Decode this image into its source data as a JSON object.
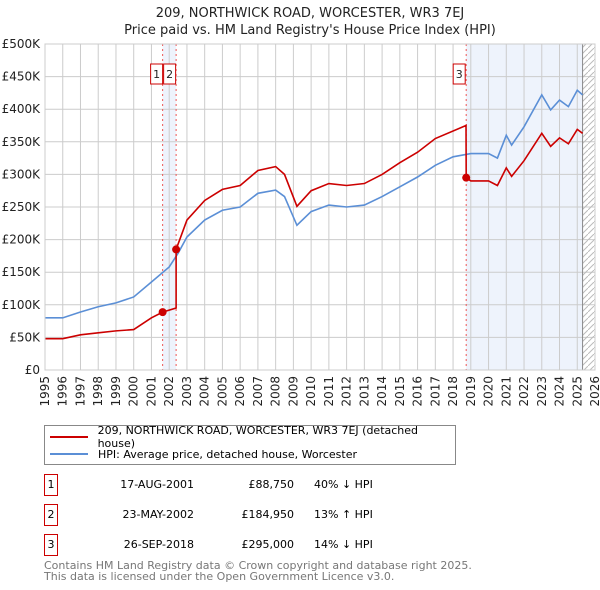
{
  "chart_data": {
    "type": "line",
    "title": "209, NORTHWICK ROAD, WORCESTER, WR3 7EJ",
    "subtitle": "Price paid vs. HM Land Registry's House Price Index (HPI)",
    "xlim": [
      1995,
      2026
    ],
    "ylim": [
      0,
      500000
    ],
    "yticks": [
      {
        "v": 0,
        "label": "£0"
      },
      {
        "v": 50000,
        "label": "£50K"
      },
      {
        "v": 100000,
        "label": "£100K"
      },
      {
        "v": 150000,
        "label": "£150K"
      },
      {
        "v": 200000,
        "label": "£200K"
      },
      {
        "v": 250000,
        "label": "£250K"
      },
      {
        "v": 300000,
        "label": "£300K"
      },
      {
        "v": 350000,
        "label": "£350K"
      },
      {
        "v": 400000,
        "label": "£400K"
      },
      {
        "v": 450000,
        "label": "£450K"
      },
      {
        "v": 500000,
        "label": "£500K"
      }
    ],
    "xticks": [
      "1995",
      "1996",
      "1997",
      "1998",
      "1999",
      "2000",
      "2001",
      "2002",
      "2003",
      "2004",
      "2005",
      "2006",
      "2007",
      "2008",
      "2009",
      "2010",
      "2011",
      "2012",
      "2013",
      "2014",
      "2015",
      "2016",
      "2017",
      "2018",
      "2019",
      "2020",
      "2021",
      "2022",
      "2023",
      "2024",
      "2025",
      "2026"
    ],
    "grid": true,
    "series": [
      {
        "name": "209, NORTHWICK ROAD, WORCESTER, WR3 7EJ (detached house)",
        "color": "#cc0000",
        "x": [
          1995,
          1996,
          1997,
          1998,
          1999,
          2000,
          2001,
          2001.63,
          2002.39,
          2002.39,
          2003,
          2004,
          2005,
          2006,
          2007,
          2008,
          2008.5,
          2009.2,
          2010,
          2011,
          2012,
          2013,
          2014,
          2015,
          2016,
          2017,
          2018.73,
          2018.74,
          2019,
          2020,
          2020.5,
          2021,
          2021.3,
          2022,
          2023,
          2023.5,
          2024,
          2024.5,
          2025,
          2025.3
        ],
        "y": [
          48000,
          48000,
          54000,
          57000,
          60000,
          62000,
          80000,
          88750,
          95000,
          184950,
          230000,
          260000,
          277000,
          283000,
          306000,
          312000,
          300000,
          251000,
          275000,
          286000,
          283000,
          286000,
          300000,
          318000,
          334000,
          355000,
          375000,
          295000,
          290000,
          290000,
          283000,
          310000,
          297000,
          321000,
          363000,
          343000,
          356000,
          347000,
          369000,
          363000
        ]
      },
      {
        "name": "HPI: Average price, detached house, Worcester",
        "color": "#5b8fd6",
        "x": [
          1995,
          1996,
          1997,
          1998,
          1999,
          2000,
          2001,
          2002,
          2002.5,
          2003,
          2004,
          2005,
          2006,
          2007,
          2008,
          2008.5,
          2009.2,
          2010,
          2011,
          2012,
          2013,
          2014,
          2015,
          2016,
          2017,
          2018,
          2019,
          2020,
          2020.5,
          2021,
          2021.3,
          2022,
          2023,
          2023.5,
          2024,
          2024.5,
          2025,
          2025.3
        ],
        "y": [
          80000,
          80000,
          89000,
          97000,
          103000,
          112000,
          135000,
          158000,
          179000,
          204000,
          230000,
          245000,
          250000,
          271000,
          276000,
          266000,
          222000,
          243000,
          253000,
          250000,
          253000,
          266000,
          281000,
          296000,
          314000,
          327000,
          332000,
          332000,
          325000,
          360000,
          345000,
          373000,
          422000,
          399000,
          414000,
          404000,
          429000,
          422000
        ]
      }
    ],
    "sales": [
      {
        "label": "1",
        "date": "17-AUG-2001",
        "x": 2001.63,
        "price": "£88,750",
        "value": 88750,
        "hpi": "40% ↓ HPI"
      },
      {
        "label": "2",
        "date": "23-MAY-2002",
        "x": 2002.39,
        "price": "£184,950",
        "value": 184950,
        "hpi": "13% ↑ HPI"
      },
      {
        "label": "3",
        "date": "26-SEP-2018",
        "x": 2018.74,
        "price": "£295,000",
        "value": 295000,
        "hpi": "14% ↓ HPI"
      }
    ],
    "forecast_start": 2025.3,
    "legend_position": "below"
  },
  "footer": [
    "Contains HM Land Registry data © Crown copyright and database right 2025.",
    "This data is licensed under the Open Government Licence v3.0."
  ]
}
